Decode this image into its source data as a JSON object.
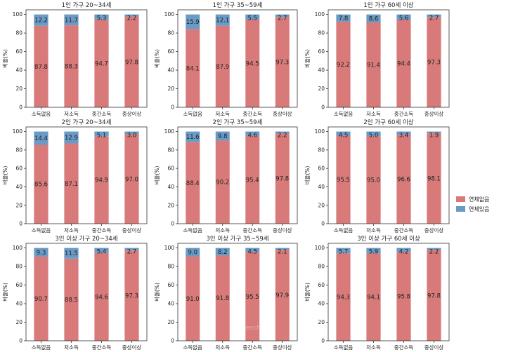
{
  "colors": {
    "no_delinquency": "#d97a7a",
    "delinquency": "#6a9bc6",
    "axis": "#333333"
  },
  "legend": {
    "no_delinquency": "연체없음",
    "delinquency": "연체있음",
    "placement": "right"
  },
  "watermark": "each",
  "chart_data": [
    {
      "type": "bar",
      "stacked": true,
      "title": "1인 가구 20~34세",
      "categories": [
        "소득없음",
        "저소득",
        "중간소득",
        "중상이상"
      ],
      "ylabel": "비율(%)",
      "ylim": [
        0,
        105
      ],
      "yticks": [
        0,
        20,
        40,
        60,
        80,
        100
      ],
      "series": [
        {
          "name": "연체없음",
          "values": [
            87.8,
            88.3,
            94.7,
            97.8
          ],
          "labels": [
            "87.8",
            "88.3",
            "94.7",
            "97.8"
          ]
        },
        {
          "name": "연체있음",
          "values": [
            12.2,
            11.7,
            5.3,
            2.2
          ],
          "labels": [
            "12.2",
            "11.7",
            "5.3",
            "2.2"
          ]
        }
      ]
    },
    {
      "type": "bar",
      "stacked": true,
      "title": "1인 가구 35~59세",
      "categories": [
        "소득없음",
        "저소득",
        "중간소득",
        "중상이상"
      ],
      "ylabel": "비율(%)",
      "ylim": [
        0,
        105
      ],
      "yticks": [
        0,
        20,
        40,
        60,
        80,
        100
      ],
      "series": [
        {
          "name": "연체없음",
          "values": [
            84.1,
            87.9,
            94.5,
            97.3
          ],
          "labels": [
            "84.1",
            "87.9",
            "94.5",
            "97.3"
          ]
        },
        {
          "name": "연체있음",
          "values": [
            15.9,
            12.1,
            5.5,
            2.7
          ],
          "labels": [
            "15.9",
            "12.1",
            "5.5",
            "2.7"
          ]
        }
      ]
    },
    {
      "type": "bar",
      "stacked": true,
      "title": "1인 가구 60세 이상",
      "categories": [
        "소득없음",
        "저소득",
        "중간소득",
        "중상이상"
      ],
      "ylabel": "비율(%)",
      "ylim": [
        0,
        105
      ],
      "yticks": [
        0,
        20,
        40,
        60,
        80,
        100
      ],
      "series": [
        {
          "name": "연체없음",
          "values": [
            92.2,
            91.4,
            94.4,
            97.3
          ],
          "labels": [
            "92.2",
            "91.4",
            "94.4",
            "97.3"
          ]
        },
        {
          "name": "연체있음",
          "values": [
            7.8,
            8.6,
            5.6,
            2.7
          ],
          "labels": [
            "7.8",
            "8.6",
            "5.6",
            "2.7"
          ]
        }
      ]
    },
    {
      "type": "bar",
      "stacked": true,
      "title": "2인 가구 20~34세",
      "categories": [
        "소득없음",
        "저소득",
        "중간소득",
        "중상이상"
      ],
      "ylabel": "비율(%)",
      "ylim": [
        0,
        105
      ],
      "yticks": [
        0,
        20,
        40,
        60,
        80,
        100
      ],
      "series": [
        {
          "name": "연체없음",
          "values": [
            85.6,
            87.1,
            94.9,
            97.0
          ],
          "labels": [
            "85.6",
            "87.1",
            "94.9",
            "97.0"
          ]
        },
        {
          "name": "연체있음",
          "values": [
            14.4,
            12.9,
            5.1,
            3.0
          ],
          "labels": [
            "14.4",
            "12.9",
            "5.1",
            "3.0"
          ]
        }
      ]
    },
    {
      "type": "bar",
      "stacked": true,
      "title": "2인 가구 35~59세",
      "categories": [
        "소득없음",
        "저소득",
        "중간소득",
        "중상이상"
      ],
      "ylabel": "비율(%)",
      "ylim": [
        0,
        105
      ],
      "yticks": [
        0,
        20,
        40,
        60,
        80,
        100
      ],
      "series": [
        {
          "name": "연체없음",
          "values": [
            88.4,
            90.2,
            95.4,
            97.8
          ],
          "labels": [
            "88.4",
            "90.2",
            "95.4",
            "97.8"
          ]
        },
        {
          "name": "연체있음",
          "values": [
            11.6,
            9.8,
            4.6,
            2.2
          ],
          "labels": [
            "11.6",
            "9.8",
            "4.6",
            "2.2"
          ]
        }
      ]
    },
    {
      "type": "bar",
      "stacked": true,
      "title": "2인 가구 60세 이상",
      "categories": [
        "소득없음",
        "저소득",
        "중간소득",
        "중상이상"
      ],
      "ylabel": "비율(%)",
      "ylim": [
        0,
        105
      ],
      "yticks": [
        0,
        20,
        40,
        60,
        80,
        100
      ],
      "series": [
        {
          "name": "연체없음",
          "values": [
            95.5,
            95.0,
            96.6,
            98.1
          ],
          "labels": [
            "95.5",
            "95.0",
            "96.6",
            "98.1"
          ]
        },
        {
          "name": "연체있음",
          "values": [
            4.5,
            5.0,
            3.4,
            1.9
          ],
          "labels": [
            "4.5",
            "5.0",
            "3.4",
            "1.9"
          ]
        }
      ]
    },
    {
      "type": "bar",
      "stacked": true,
      "title": "3인 이상 가구 20~34세",
      "categories": [
        "소득없음",
        "저소득",
        "중간소득",
        "중상이상"
      ],
      "ylabel": "비율(%)",
      "ylim": [
        0,
        105
      ],
      "yticks": [
        0,
        20,
        40,
        60,
        80,
        100
      ],
      "series": [
        {
          "name": "연체없음",
          "values": [
            90.7,
            88.5,
            94.6,
            97.3
          ],
          "labels": [
            "90.7",
            "88.5",
            "94.6",
            "97.3"
          ]
        },
        {
          "name": "연체있음",
          "values": [
            9.3,
            11.5,
            5.4,
            2.7
          ],
          "labels": [
            "9.3",
            "11.5",
            "5.4",
            "2.7"
          ]
        }
      ]
    },
    {
      "type": "bar",
      "stacked": true,
      "title": "3인 이상 가구 35~59세",
      "categories": [
        "소득없음",
        "저소득",
        "중간소득",
        "중상이상"
      ],
      "ylabel": "비율(%)",
      "ylim": [
        0,
        105
      ],
      "yticks": [
        0,
        20,
        40,
        60,
        80,
        100
      ],
      "series": [
        {
          "name": "연체없음",
          "values": [
            91.0,
            91.8,
            95.5,
            97.9
          ],
          "labels": [
            "91.0",
            "91.8",
            "95.5",
            "97.9"
          ]
        },
        {
          "name": "연체있음",
          "values": [
            9.0,
            8.2,
            4.5,
            2.1
          ],
          "labels": [
            "9.0",
            "8.2",
            "4.5",
            "2.1"
          ]
        }
      ]
    },
    {
      "type": "bar",
      "stacked": true,
      "title": "3인 이상 가구 60세 이상",
      "categories": [
        "소득없음",
        "저소득",
        "중간소득",
        "중상이상"
      ],
      "ylabel": "비율(%)",
      "ylim": [
        0,
        105
      ],
      "yticks": [
        0,
        20,
        40,
        60,
        80,
        100
      ],
      "series": [
        {
          "name": "연체없음",
          "values": [
            94.3,
            94.1,
            95.8,
            97.8
          ],
          "labels": [
            "94.3",
            "94.1",
            "95.8",
            "97.8"
          ]
        },
        {
          "name": "연체있음",
          "values": [
            5.7,
            5.9,
            4.2,
            2.2
          ],
          "labels": [
            "5.7",
            "5.9",
            "4.2",
            "2.2"
          ]
        }
      ]
    }
  ]
}
